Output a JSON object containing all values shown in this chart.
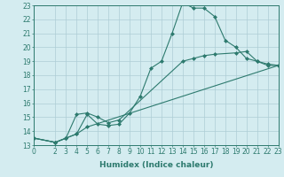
{
  "line1_x": [
    0,
    2,
    3,
    4,
    5,
    6,
    7,
    8,
    9,
    10,
    11,
    12,
    13,
    14,
    15,
    16,
    17,
    18,
    19,
    20,
    21,
    22,
    23
  ],
  "line1_y": [
    13.5,
    13.2,
    13.5,
    13.8,
    15.2,
    14.5,
    14.4,
    14.5,
    15.3,
    16.5,
    18.5,
    19.0,
    21.0,
    23.2,
    22.8,
    22.8,
    22.2,
    20.5,
    20.0,
    19.2,
    19.0,
    18.8,
    18.7
  ],
  "line2_x": [
    0,
    2,
    3,
    4,
    5,
    6,
    7,
    8,
    14,
    15,
    16,
    17,
    19,
    20,
    21,
    22,
    23
  ],
  "line2_y": [
    13.5,
    13.2,
    13.5,
    15.2,
    15.3,
    15.0,
    14.6,
    14.8,
    19.0,
    19.2,
    19.4,
    19.5,
    19.6,
    19.7,
    19.0,
    18.7,
    18.7
  ],
  "line3_x": [
    0,
    2,
    3,
    4,
    5,
    23
  ],
  "line3_y": [
    13.5,
    13.2,
    13.5,
    13.8,
    14.3,
    18.7
  ],
  "color": "#2d7a6e",
  "bg_color": "#d4ecf0",
  "grid_color": "#aecdd5",
  "xlim": [
    0,
    23
  ],
  "ylim": [
    13,
    23
  ],
  "xlabel": "Humidex (Indice chaleur)",
  "xticks": [
    0,
    2,
    3,
    4,
    5,
    6,
    7,
    8,
    9,
    10,
    11,
    12,
    13,
    14,
    15,
    16,
    17,
    18,
    19,
    20,
    21,
    22,
    23
  ],
  "yticks": [
    13,
    14,
    15,
    16,
    17,
    18,
    19,
    20,
    21,
    22,
    23
  ],
  "label_fontsize": 6.5,
  "tick_fontsize": 5.5,
  "marker": "D",
  "linewidth": 0.8,
  "markersize": 2.0
}
